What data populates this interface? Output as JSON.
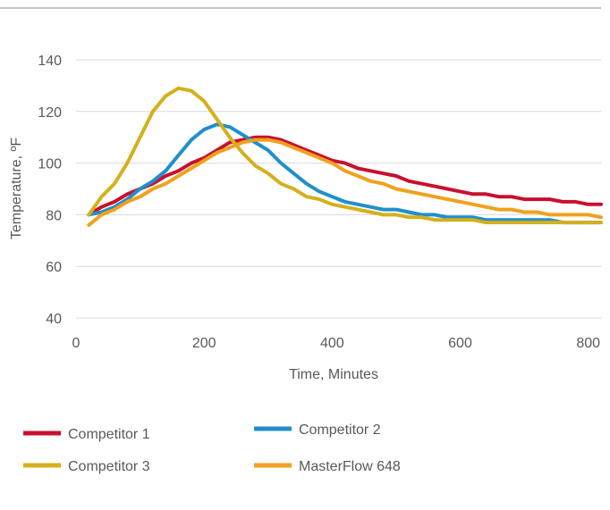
{
  "chart_data": {
    "type": "line",
    "xlabel": "Time, Minutes",
    "ylabel": "Temperature, ºF",
    "xlim": [
      0,
      820
    ],
    "ylim": [
      40,
      140
    ],
    "x_ticks": [
      "0",
      "200",
      "400",
      "600",
      "800"
    ],
    "y_ticks": [
      "40",
      "60",
      "80",
      "100",
      "120",
      "140"
    ],
    "grid": "horizontal",
    "legend_position": "bottom",
    "series": [
      {
        "name": "Competitor 1",
        "color": "#c8102e",
        "points": [
          [
            20,
            80
          ],
          [
            40,
            83
          ],
          [
            60,
            85
          ],
          [
            80,
            88
          ],
          [
            100,
            90
          ],
          [
            120,
            92
          ],
          [
            140,
            95
          ],
          [
            160,
            97
          ],
          [
            180,
            100
          ],
          [
            200,
            102
          ],
          [
            220,
            105
          ],
          [
            240,
            108
          ],
          [
            260,
            109
          ],
          [
            280,
            110
          ],
          [
            300,
            110
          ],
          [
            320,
            109
          ],
          [
            340,
            107
          ],
          [
            360,
            105
          ],
          [
            380,
            103
          ],
          [
            400,
            101
          ],
          [
            420,
            100
          ],
          [
            440,
            98
          ],
          [
            460,
            97
          ],
          [
            480,
            96
          ],
          [
            500,
            95
          ],
          [
            520,
            93
          ],
          [
            540,
            92
          ],
          [
            560,
            91
          ],
          [
            580,
            90
          ],
          [
            600,
            89
          ],
          [
            620,
            88
          ],
          [
            640,
            88
          ],
          [
            660,
            87
          ],
          [
            680,
            87
          ],
          [
            700,
            86
          ],
          [
            720,
            86
          ],
          [
            740,
            86
          ],
          [
            760,
            85
          ],
          [
            780,
            85
          ],
          [
            800,
            84
          ],
          [
            820,
            84
          ]
        ]
      },
      {
        "name": "Competitor 2",
        "color": "#1f8fcc",
        "points": [
          [
            20,
            80
          ],
          [
            40,
            81
          ],
          [
            60,
            83
          ],
          [
            80,
            86
          ],
          [
            100,
            90
          ],
          [
            120,
            93
          ],
          [
            140,
            97
          ],
          [
            160,
            103
          ],
          [
            180,
            109
          ],
          [
            200,
            113
          ],
          [
            220,
            115
          ],
          [
            240,
            114
          ],
          [
            260,
            111
          ],
          [
            280,
            108
          ],
          [
            300,
            105
          ],
          [
            320,
            100
          ],
          [
            340,
            96
          ],
          [
            360,
            92
          ],
          [
            380,
            89
          ],
          [
            400,
            87
          ],
          [
            420,
            85
          ],
          [
            440,
            84
          ],
          [
            460,
            83
          ],
          [
            480,
            82
          ],
          [
            500,
            82
          ],
          [
            520,
            81
          ],
          [
            540,
            80
          ],
          [
            560,
            80
          ],
          [
            580,
            79
          ],
          [
            600,
            79
          ],
          [
            620,
            79
          ],
          [
            640,
            78
          ],
          [
            660,
            78
          ],
          [
            680,
            78
          ],
          [
            700,
            78
          ],
          [
            720,
            78
          ],
          [
            740,
            78
          ],
          [
            760,
            77
          ],
          [
            780,
            77
          ],
          [
            800,
            77
          ],
          [
            820,
            77
          ]
        ]
      },
      {
        "name": "Competitor 3",
        "color": "#d4b01c",
        "points": [
          [
            20,
            80
          ],
          [
            40,
            87
          ],
          [
            60,
            92
          ],
          [
            80,
            100
          ],
          [
            100,
            110
          ],
          [
            120,
            120
          ],
          [
            140,
            126
          ],
          [
            160,
            129
          ],
          [
            180,
            128
          ],
          [
            200,
            124
          ],
          [
            220,
            117
          ],
          [
            240,
            110
          ],
          [
            260,
            104
          ],
          [
            280,
            99
          ],
          [
            300,
            96
          ],
          [
            320,
            92
          ],
          [
            340,
            90
          ],
          [
            360,
            87
          ],
          [
            380,
            86
          ],
          [
            400,
            84
          ],
          [
            420,
            83
          ],
          [
            440,
            82
          ],
          [
            460,
            81
          ],
          [
            480,
            80
          ],
          [
            500,
            80
          ],
          [
            520,
            79
          ],
          [
            540,
            79
          ],
          [
            560,
            78
          ],
          [
            580,
            78
          ],
          [
            600,
            78
          ],
          [
            620,
            78
          ],
          [
            640,
            77
          ],
          [
            660,
            77
          ],
          [
            680,
            77
          ],
          [
            700,
            77
          ],
          [
            720,
            77
          ],
          [
            740,
            77
          ],
          [
            760,
            77
          ],
          [
            780,
            77
          ],
          [
            800,
            77
          ],
          [
            820,
            77
          ]
        ]
      },
      {
        "name": "MasterFlow 648",
        "color": "#f0a11e",
        "points": [
          [
            20,
            76
          ],
          [
            40,
            80
          ],
          [
            60,
            82
          ],
          [
            80,
            85
          ],
          [
            100,
            87
          ],
          [
            120,
            90
          ],
          [
            140,
            92
          ],
          [
            160,
            95
          ],
          [
            180,
            98
          ],
          [
            200,
            101
          ],
          [
            220,
            104
          ],
          [
            240,
            106
          ],
          [
            260,
            108
          ],
          [
            280,
            109
          ],
          [
            300,
            109
          ],
          [
            320,
            108
          ],
          [
            340,
            106
          ],
          [
            360,
            104
          ],
          [
            380,
            102
          ],
          [
            400,
            100
          ],
          [
            420,
            97
          ],
          [
            440,
            95
          ],
          [
            460,
            93
          ],
          [
            480,
            92
          ],
          [
            500,
            90
          ],
          [
            520,
            89
          ],
          [
            540,
            88
          ],
          [
            560,
            87
          ],
          [
            580,
            86
          ],
          [
            600,
            85
          ],
          [
            620,
            84
          ],
          [
            640,
            83
          ],
          [
            660,
            82
          ],
          [
            680,
            82
          ],
          [
            700,
            81
          ],
          [
            720,
            81
          ],
          [
            740,
            80
          ],
          [
            760,
            80
          ],
          [
            780,
            80
          ],
          [
            800,
            80
          ],
          [
            820,
            79
          ]
        ]
      }
    ]
  }
}
